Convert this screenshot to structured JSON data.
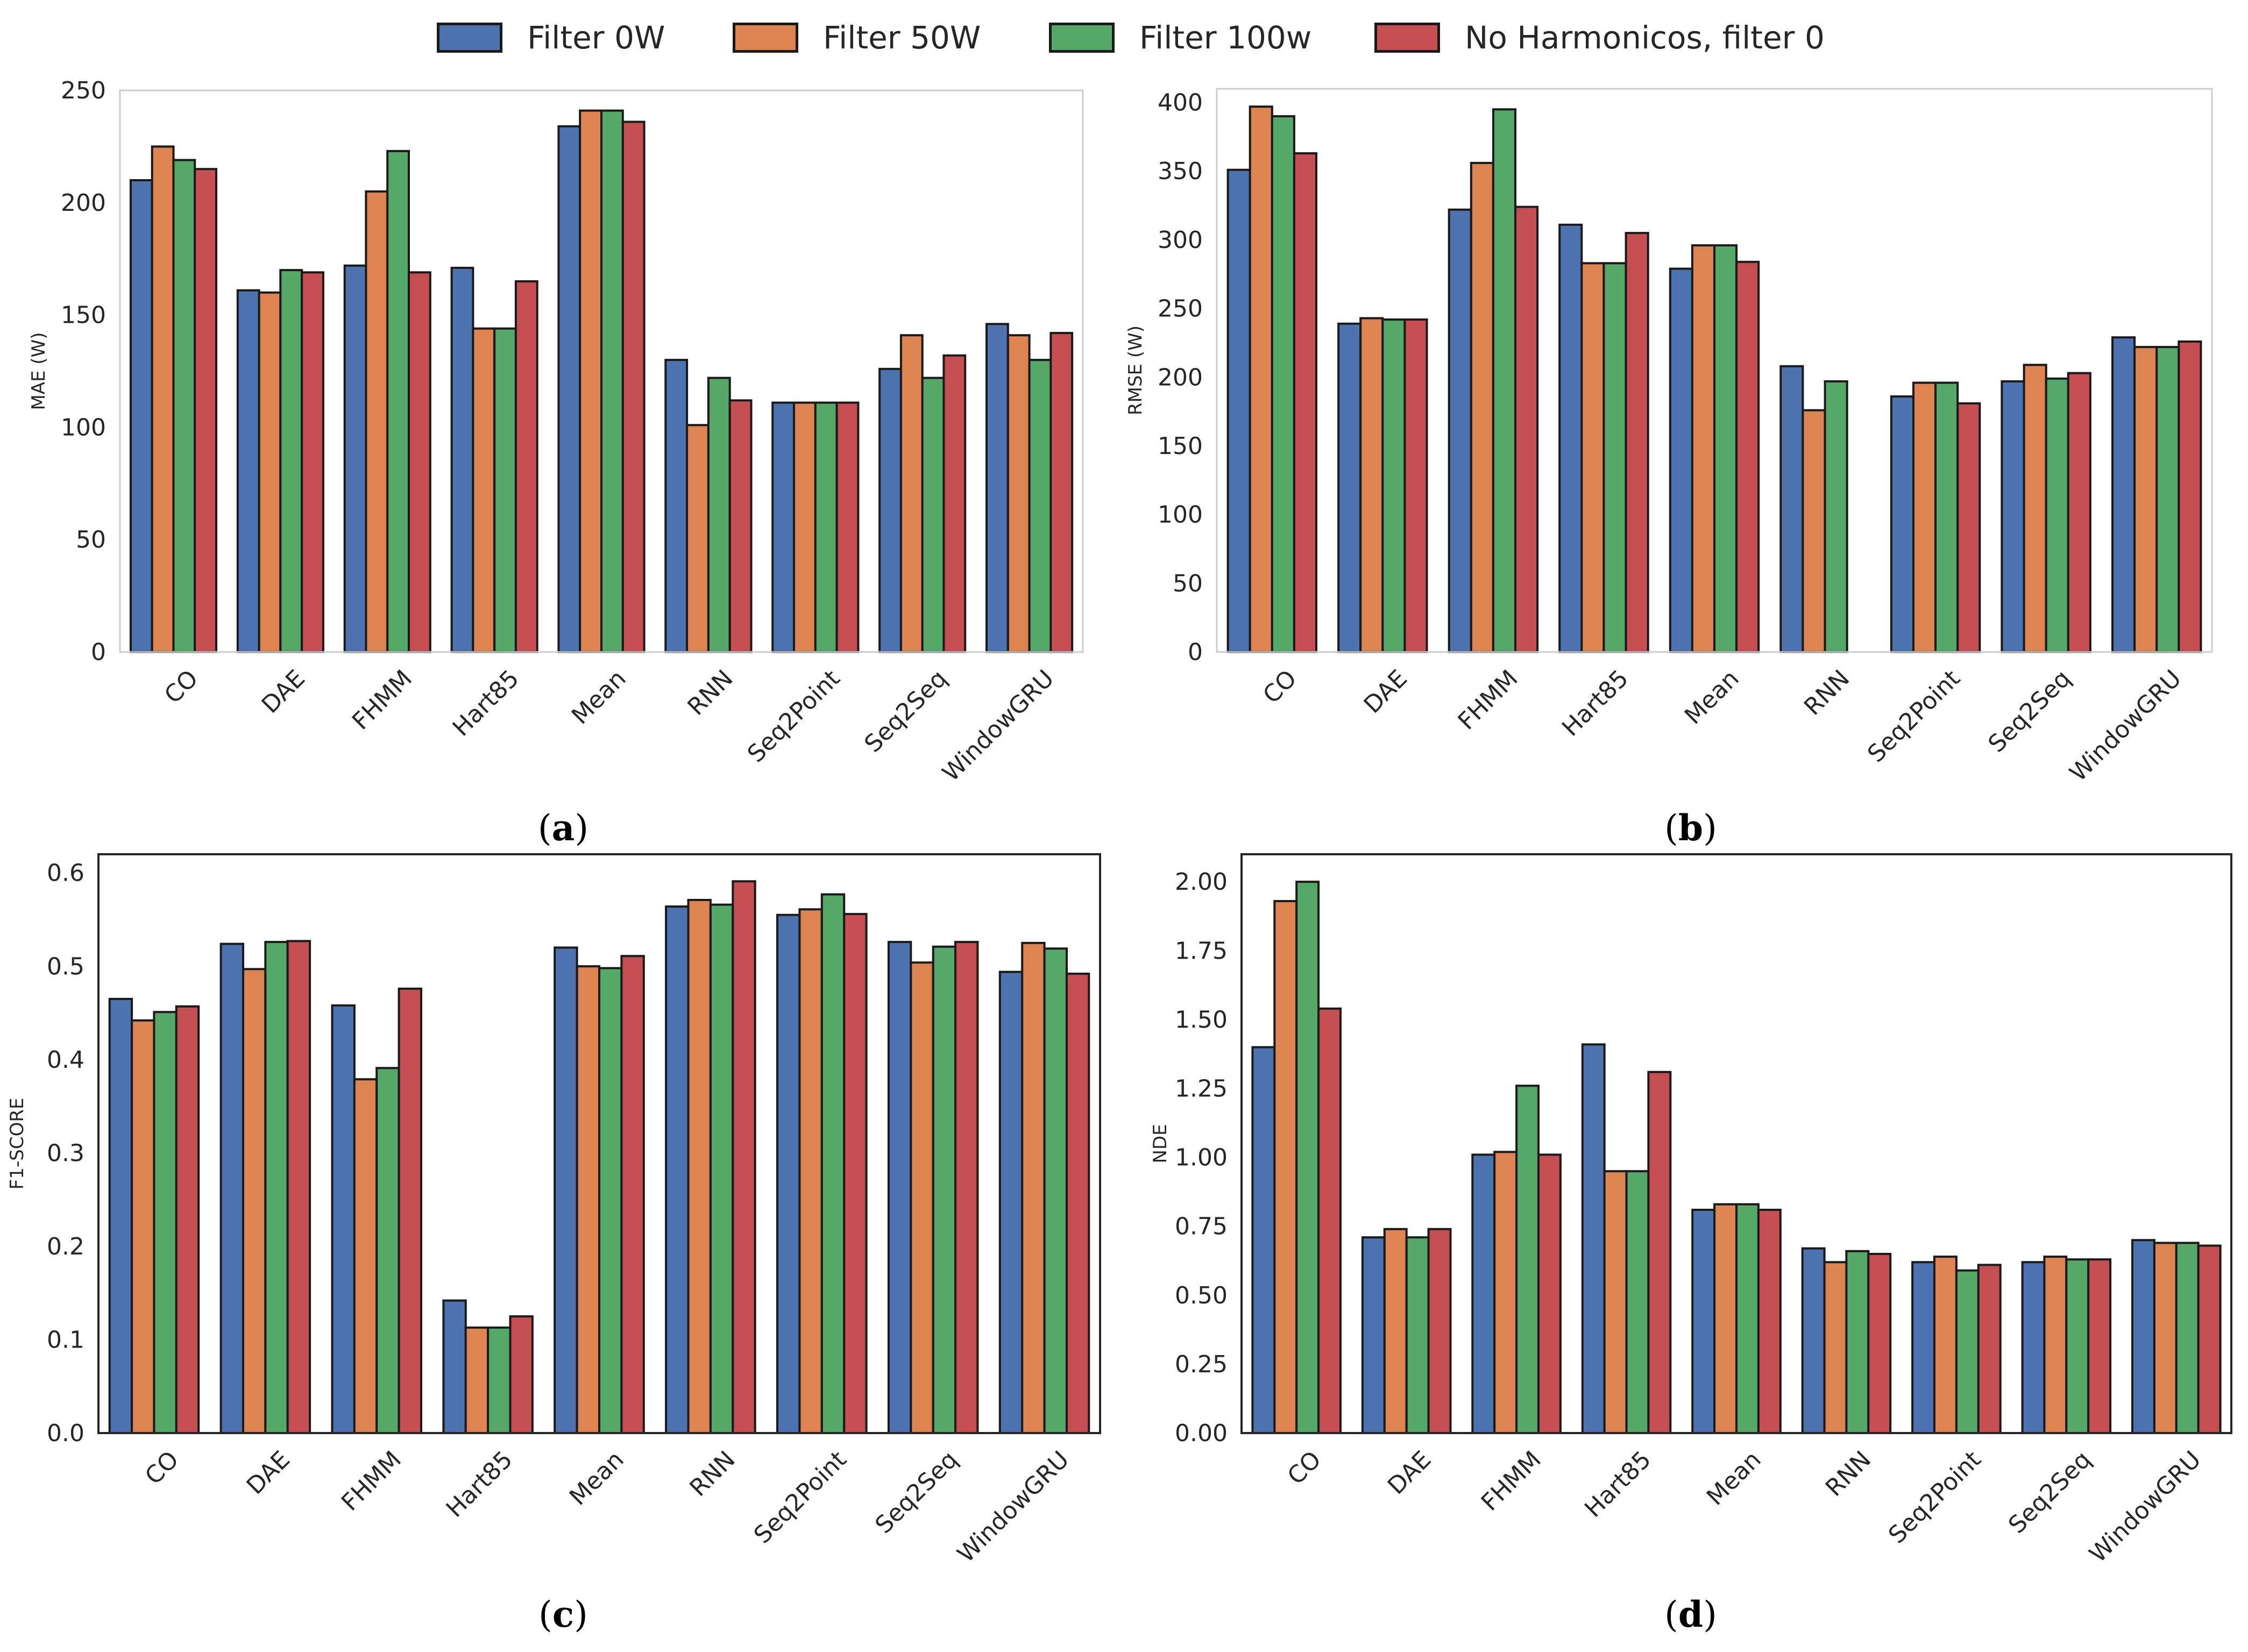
{
  "legend": {
    "items": [
      {
        "label": "Filter 0W",
        "color": "#4C72B0"
      },
      {
        "label": "Filter 50W",
        "color": "#DD8452"
      },
      {
        "label": "Filter 100w",
        "color": "#55A868"
      },
      {
        "label": "No Harmonicos, filter 0",
        "color": "#C44E52"
      }
    ]
  },
  "captions": {
    "a": {
      "open": "(",
      "letter": "a",
      "close": ")"
    },
    "b": {
      "open": "(",
      "letter": "b",
      "close": ")"
    },
    "c": {
      "open": "(",
      "letter": "c",
      "close": ")"
    },
    "d": {
      "open": "(",
      "letter": "d",
      "close": ")"
    }
  },
  "chart_data": [
    {
      "id": "a",
      "type": "bar",
      "ylabel": "MAE (W)",
      "ylim": [
        0,
        250
      ],
      "yticks": [
        "0",
        "50",
        "100",
        "150",
        "200",
        "250"
      ],
      "ytick_values": [
        0,
        50,
        100,
        150,
        200,
        250
      ],
      "categories": [
        "CO",
        "DAE",
        "FHMM",
        "Hart85",
        "Mean",
        "RNN",
        "Seq2Point",
        "Seq2Seq",
        "WindowGRU"
      ],
      "series": [
        {
          "name": "Filter 0W",
          "values": [
            210,
            161,
            172,
            171,
            234,
            130,
            111,
            126,
            146
          ]
        },
        {
          "name": "Filter 50W",
          "values": [
            225,
            160,
            205,
            144,
            241,
            101,
            111,
            141,
            141
          ]
        },
        {
          "name": "Filter 100w",
          "values": [
            219,
            170,
            223,
            144,
            241,
            122,
            111,
            122,
            130
          ]
        },
        {
          "name": "No Harmonicos, filter 0",
          "values": [
            215,
            169,
            169,
            165,
            236,
            112,
            111,
            132,
            142
          ]
        }
      ]
    },
    {
      "id": "b",
      "type": "bar",
      "ylabel": "RMSE (W)",
      "ylim": [
        0,
        410
      ],
      "yticks": [
        "0",
        "50",
        "100",
        "150",
        "200",
        "250",
        "300",
        "350",
        "400"
      ],
      "ytick_values": [
        0,
        50,
        100,
        150,
        200,
        250,
        300,
        350,
        400
      ],
      "categories": [
        "CO",
        "DAE",
        "FHMM",
        "Hart85",
        "Mean",
        "RNN",
        "Seq2Point",
        "Seq2Seq",
        "WindowGRU"
      ],
      "series": [
        {
          "name": "Filter 0W",
          "values": [
            351,
            239,
            322,
            311,
            279,
            208,
            186,
            197,
            229
          ]
        },
        {
          "name": "Filter 50W",
          "values": [
            397,
            243,
            356,
            283,
            296,
            176,
            196,
            209,
            222
          ]
        },
        {
          "name": "Filter 100w",
          "values": [
            390,
            242,
            395,
            283,
            296,
            197,
            196,
            199,
            222
          ]
        },
        {
          "name": "No Harmonicos, filter 0",
          "values": [
            363,
            242,
            324,
            305,
            284,
            null,
            181,
            203,
            226
          ]
        }
      ]
    },
    {
      "id": "c",
      "type": "bar",
      "ylabel": "F1-SCORE",
      "ylim": [
        0,
        0.62
      ],
      "yticks": [
        "0.0",
        "0.1",
        "0.2",
        "0.3",
        "0.4",
        "0.5",
        "0.6"
      ],
      "ytick_values": [
        0,
        0.1,
        0.2,
        0.3,
        0.4,
        0.5,
        0.6
      ],
      "categories": [
        "CO",
        "DAE",
        "FHMM",
        "Hart85",
        "Mean",
        "RNN",
        "Seq2Point",
        "Seq2Seq",
        "WindowGRU"
      ],
      "series": [
        {
          "name": "Filter 0W",
          "values": [
            0.465,
            0.524,
            0.458,
            0.142,
            0.52,
            0.564,
            0.555,
            0.526,
            0.494
          ]
        },
        {
          "name": "Filter 50W",
          "values": [
            0.442,
            0.497,
            0.379,
            0.113,
            0.5,
            0.571,
            0.561,
            0.504,
            0.525
          ]
        },
        {
          "name": "Filter 100w",
          "values": [
            0.451,
            0.526,
            0.391,
            0.113,
            0.498,
            0.566,
            0.577,
            0.521,
            0.519
          ]
        },
        {
          "name": "No Harmonicos, filter 0",
          "values": [
            0.457,
            0.527,
            0.476,
            0.125,
            0.511,
            0.591,
            0.556,
            0.526,
            0.492
          ]
        }
      ]
    },
    {
      "id": "d",
      "type": "bar",
      "ylabel": "NDE",
      "ylim": [
        0,
        2.1
      ],
      "yticks": [
        "0.00",
        "0.25",
        "0.50",
        "0.75",
        "1.00",
        "1.25",
        "1.50",
        "1.75",
        "2.00"
      ],
      "ytick_values": [
        0,
        0.25,
        0.5,
        0.75,
        1.0,
        1.25,
        1.5,
        1.75,
        2.0
      ],
      "categories": [
        "CO",
        "DAE",
        "FHMM",
        "Hart85",
        "Mean",
        "RNN",
        "Seq2Point",
        "Seq2Seq",
        "WindowGRU"
      ],
      "series": [
        {
          "name": "Filter 0W",
          "values": [
            1.4,
            0.71,
            1.01,
            1.41,
            0.81,
            0.67,
            0.62,
            0.62,
            0.7
          ]
        },
        {
          "name": "Filter 50W",
          "values": [
            1.93,
            0.74,
            1.02,
            0.95,
            0.83,
            0.62,
            0.64,
            0.64,
            0.69
          ]
        },
        {
          "name": "Filter 100w",
          "values": [
            2.0,
            0.71,
            1.26,
            0.95,
            0.83,
            0.66,
            0.59,
            0.63,
            0.69
          ]
        },
        {
          "name": "No Harmonicos, filter 0",
          "values": [
            1.54,
            0.74,
            1.01,
            1.31,
            0.81,
            0.65,
            0.61,
            0.63,
            0.68
          ]
        }
      ]
    }
  ]
}
